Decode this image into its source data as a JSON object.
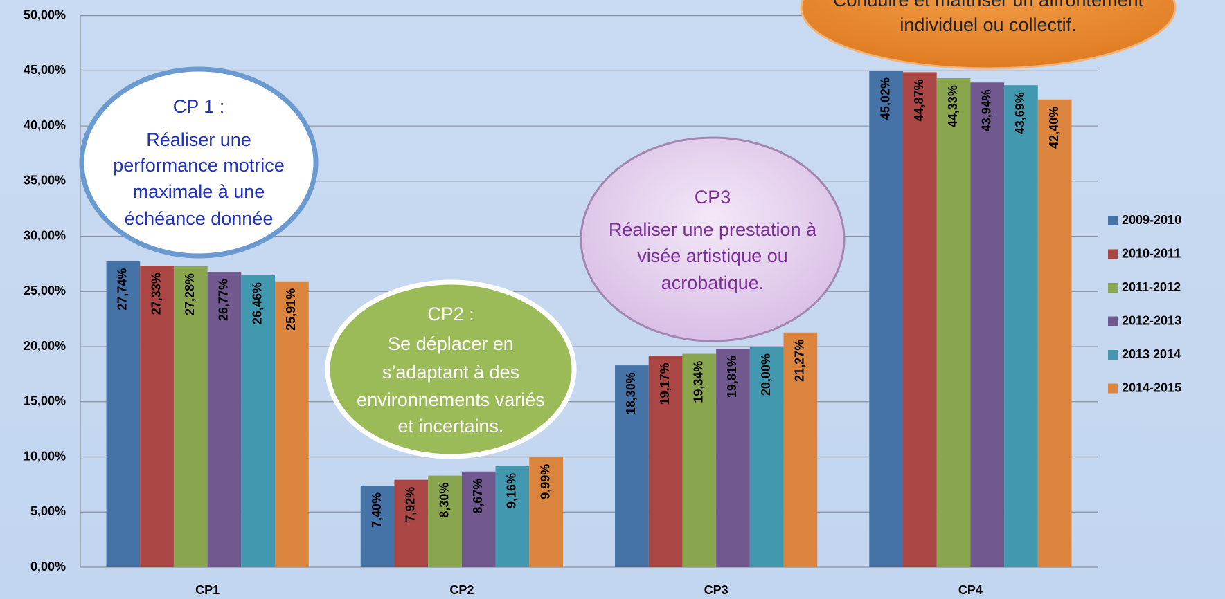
{
  "chart_data": {
    "type": "bar",
    "categories": [
      "CP1",
      "CP2",
      "CP3",
      "CP4"
    ],
    "series": [
      {
        "name": "2009-2010",
        "color": "#4572a7",
        "values": [
          27.74,
          7.4,
          18.3,
          45.02
        ],
        "value_labels": [
          "27,74%",
          "7,40%",
          "18,30%",
          "45,02%"
        ]
      },
      {
        "name": "2010-2011",
        "color": "#aa4643",
        "values": [
          27.33,
          7.92,
          19.17,
          44.87
        ],
        "value_labels": [
          "27,33%",
          "7,92%",
          "19,17%",
          "44,87%"
        ]
      },
      {
        "name": "2011-2012",
        "color": "#89a54e",
        "values": [
          27.28,
          8.3,
          19.34,
          44.33
        ],
        "value_labels": [
          "27,28%",
          "8,30%",
          "19,34%",
          "44,33%"
        ]
      },
      {
        "name": "2012-2013",
        "color": "#71588f",
        "values": [
          26.77,
          8.67,
          19.81,
          43.94
        ],
        "value_labels": [
          "26,77%",
          "8,67%",
          "19,81%",
          "43,94%"
        ]
      },
      {
        "name": "2013 2014",
        "color": "#4198af",
        "values": [
          26.46,
          9.16,
          20.0,
          43.69
        ],
        "value_labels": [
          "26,46%",
          "9,16%",
          "20,00%",
          "43,69%"
        ]
      },
      {
        "name": "2014-2015",
        "color": "#db843d",
        "values": [
          25.91,
          9.99,
          21.27,
          42.4
        ],
        "value_labels": [
          "25,91%",
          "9,99%",
          "21,27%",
          "42,40%"
        ]
      }
    ],
    "ylim": [
      0,
      50
    ],
    "yticks": [
      {
        "value": 0,
        "label": "0,00%"
      },
      {
        "value": 5,
        "label": "5,00%"
      },
      {
        "value": 10,
        "label": "10,00%"
      },
      {
        "value": 15,
        "label": "15,00%"
      },
      {
        "value": 20,
        "label": "20,00%"
      },
      {
        "value": 25,
        "label": "25,00%"
      },
      {
        "value": 30,
        "label": "30,00%"
      },
      {
        "value": 35,
        "label": "35,00%"
      },
      {
        "value": 40,
        "label": "40,00%"
      },
      {
        "value": 45,
        "label": "45,00%"
      },
      {
        "value": 50,
        "label": "50,00%"
      }
    ],
    "grid": true,
    "legend": "right",
    "annotations": [
      {
        "lines": [
          "CP 1 :",
          "Réaliser une",
          "performance motrice",
          "maximale à une",
          "échéance donnée"
        ]
      },
      {
        "lines": [
          "CP2 :",
          "Se déplacer en",
          "s’adaptant à des",
          "environnements variés",
          "et incertains."
        ]
      },
      {
        "lines": [
          "CP3",
          "Réaliser une prestation à",
          "visée artistique ou",
          "acrobatique."
        ]
      },
      {
        "lines": [
          "Conduire et maîtriser un affrontement",
          "individuel ou collectif."
        ]
      }
    ]
  }
}
